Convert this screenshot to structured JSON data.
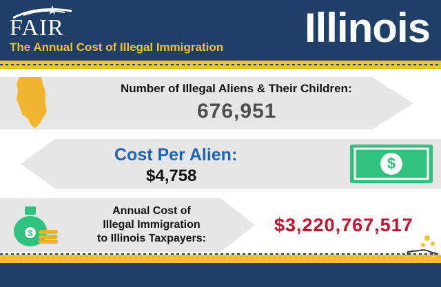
{
  "header": {
    "logo_text": "FAIR",
    "subtitle": "The Annual Cost of Illegal Immigration",
    "state": "Illinois"
  },
  "stats": {
    "population_label": "Number of Illegal Aliens & Their Children:",
    "population_value": "676,951",
    "per_alien_label": "Cost Per Alien:",
    "per_alien_value": "$4,758",
    "annual_label": "Annual Cost of\nIllegal Immigration\nto Illinois Taxpayers:",
    "annual_value": "$3,220,767,517"
  },
  "icons": {
    "state_map": "illinois-map-icon",
    "dollar_bill": "dollar-bill-icon",
    "money_bag": "money-bag-icon",
    "hand_coins": "hand-coins-icon"
  },
  "colors": {
    "navy": "#1f3f66",
    "gold": "#f2c230",
    "blue_label": "#1f63b0",
    "red_value": "#c8102e",
    "bill_green": "#2ec27e"
  }
}
